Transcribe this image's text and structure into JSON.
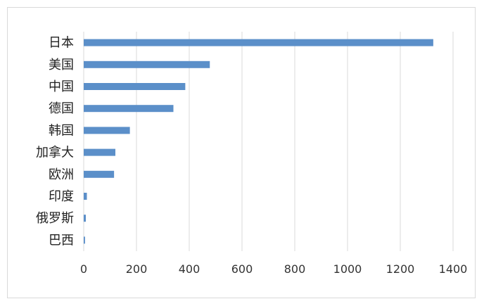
{
  "chart_data": {
    "type": "bar",
    "orientation": "horizontal",
    "title": "",
    "xlabel": "",
    "ylabel": "",
    "categories": [
      "日本",
      "美国",
      "中国",
      "德国",
      "韩国",
      "加拿大",
      "欧洲",
      "印度",
      "俄罗斯",
      "巴西"
    ],
    "values": [
      1325,
      478,
      385,
      340,
      175,
      120,
      115,
      12,
      8,
      5
    ],
    "xlim": [
      0,
      1400
    ],
    "xticks": [
      0,
      200,
      400,
      600,
      800,
      1000,
      1200,
      1400
    ],
    "grid": "vertical",
    "legend": "none",
    "colors": {
      "bar": "#5b8fc9",
      "grid": "#d9d9d9",
      "frame": "#d9d9d9"
    }
  }
}
